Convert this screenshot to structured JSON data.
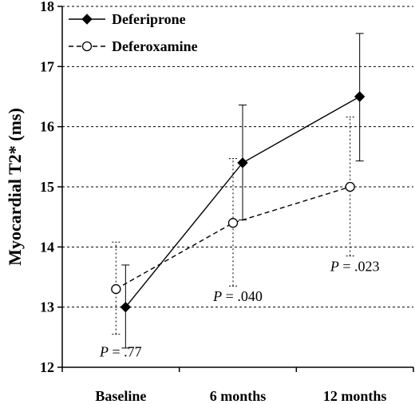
{
  "chart_data": {
    "type": "line",
    "categories": [
      "Baseline",
      "6 months",
      "12 months"
    ],
    "ylabel": "Myocardial T2* (ms)",
    "ylim": [
      12,
      18
    ],
    "yticks": [
      12,
      13,
      14,
      15,
      16,
      17,
      18
    ],
    "grid": true,
    "legend_position": "top-left",
    "series": [
      {
        "name": "Deferiprone",
        "marker": "filled-diamond",
        "line_style": "solid",
        "color": "#000000",
        "values": [
          13.0,
          15.4,
          16.5
        ],
        "error_low": [
          12.32,
          14.45,
          15.43
        ],
        "error_high": [
          13.7,
          16.36,
          17.55
        ]
      },
      {
        "name": "Deferoxamine",
        "marker": "open-circle",
        "line_style": "dashed",
        "color": "#000000",
        "values": [
          13.3,
          14.4,
          15.0
        ],
        "error_low": [
          12.55,
          13.35,
          13.85
        ],
        "error_high": [
          14.08,
          15.47,
          16.16
        ]
      }
    ],
    "annotations": [
      {
        "p_label": "P",
        "text": " = .77",
        "category": 0,
        "y": 12.18
      },
      {
        "p_label": "P",
        "text": " = .040",
        "category": 1,
        "y": 13.1
      },
      {
        "p_label": "P",
        "text": " = .023",
        "category": 2,
        "y": 13.6
      }
    ]
  }
}
